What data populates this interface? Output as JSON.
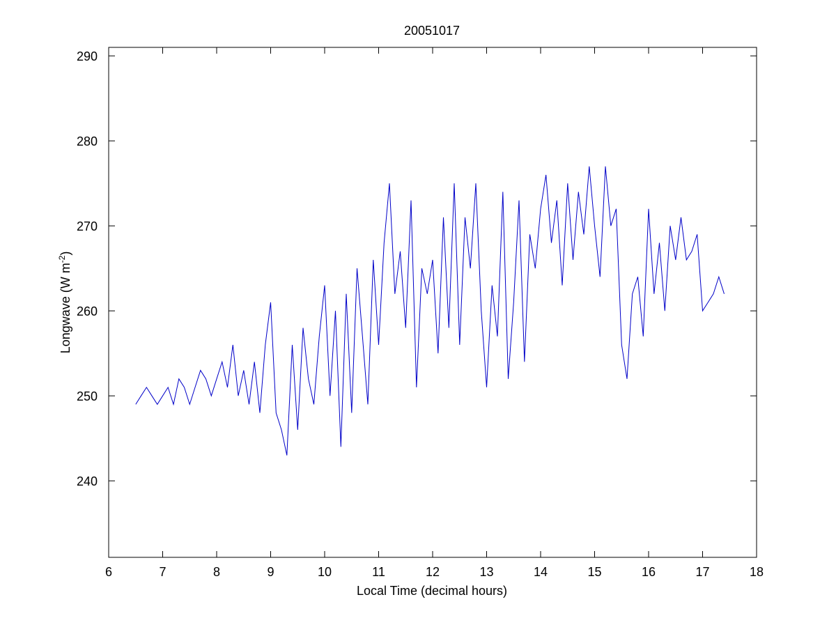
{
  "chart_data": {
    "type": "line",
    "title": "20051017",
    "xlabel": "Local Time (decimal hours)",
    "ylabel_main": "Longwave (W m",
    "ylabel_sup": "-2",
    "ylabel_close": ")",
    "xlim": [
      6,
      18
    ],
    "ylim": [
      231,
      291
    ],
    "xticks": [
      6,
      7,
      8,
      9,
      10,
      11,
      12,
      13,
      14,
      15,
      16,
      17,
      18
    ],
    "yticks": [
      240,
      250,
      260,
      270,
      280,
      290
    ],
    "grid": false,
    "line_color": "#0000c8",
    "series": [
      {
        "x": [
          6.5,
          6.6,
          6.7,
          6.8,
          6.9,
          7.0,
          7.1,
          7.2,
          7.3,
          7.4,
          7.5,
          7.6,
          7.7,
          7.8,
          7.9,
          8.0,
          8.1,
          8.2,
          8.3,
          8.4,
          8.5,
          8.6,
          8.7,
          8.8,
          8.9,
          9.0,
          9.1,
          9.2,
          9.3,
          9.4,
          9.5,
          9.6,
          9.7,
          9.8,
          9.9,
          10.0,
          10.1,
          10.2,
          10.3,
          10.4,
          10.5,
          10.6,
          10.7,
          10.8,
          10.9,
          11.0,
          11.1,
          11.2,
          11.3,
          11.4,
          11.5,
          11.6,
          11.7,
          11.8,
          11.9,
          12.0,
          12.1,
          12.2,
          12.3,
          12.4,
          12.5,
          12.6,
          12.7,
          12.8,
          12.9,
          13.0,
          13.1,
          13.2,
          13.3,
          13.4,
          13.5,
          13.6,
          13.7,
          13.8,
          13.9,
          14.0,
          14.1,
          14.2,
          14.3,
          14.4,
          14.5,
          14.6,
          14.7,
          14.8,
          14.9,
          15.0,
          15.1,
          15.2,
          15.3,
          15.4,
          15.5,
          15.6,
          15.7,
          15.8,
          15.9,
          16.0,
          16.1,
          16.2,
          16.3,
          16.4,
          16.5,
          16.6,
          16.7,
          16.8,
          16.9,
          17.0,
          17.1,
          17.2,
          17.3,
          17.4
        ],
        "values": [
          249,
          250,
          251,
          250,
          249,
          250,
          251,
          249,
          252,
          251,
          249,
          251,
          253,
          252,
          250,
          252,
          254,
          251,
          256,
          250,
          253,
          249,
          254,
          248,
          256,
          261,
          248,
          246,
          243,
          256,
          246,
          258,
          252,
          249,
          257,
          263,
          250,
          260,
          244,
          262,
          248,
          265,
          257,
          249,
          266,
          256,
          268,
          275,
          262,
          267,
          258,
          273,
          251,
          265,
          262,
          266,
          255,
          271,
          258,
          275,
          256,
          271,
          265,
          275,
          260,
          251,
          263,
          257,
          274,
          252,
          261,
          273,
          254,
          269,
          265,
          272,
          276,
          268,
          273,
          263,
          275,
          266,
          274,
          269,
          277,
          270,
          264,
          277,
          270,
          272,
          256,
          252,
          262,
          264,
          257,
          272,
          262,
          268,
          260,
          270,
          266,
          271,
          266,
          267,
          269,
          260,
          261,
          262,
          264,
          262
        ]
      }
    ]
  }
}
